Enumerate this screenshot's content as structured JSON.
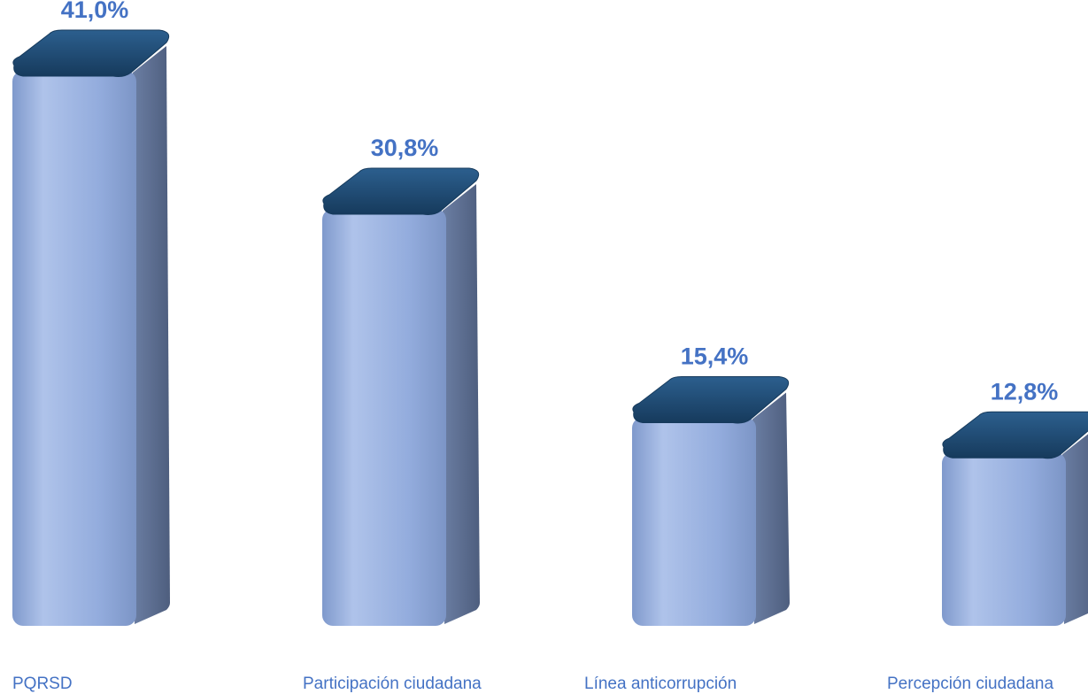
{
  "chart_data": {
    "type": "bar",
    "title": "",
    "xlabel": "",
    "ylabel": "",
    "categories": [
      "PQRSD",
      "Participación ciudadana",
      "Línea anticorrupción",
      "Percepción ciudadana"
    ],
    "values": [
      41.0,
      30.8,
      15.4,
      12.8
    ],
    "value_labels": [
      "41,0%",
      "30,8%",
      "15,4%",
      "12,8%"
    ],
    "unit": "%",
    "ylim": [
      0,
      41
    ],
    "grid": false,
    "legend": "none",
    "colors": {
      "front": "#8FA9DC",
      "front_light": "#AFC3EA",
      "side": "#5A6B8C",
      "top": "#1F4E79",
      "top_edge": "#163A5C",
      "label": "#4472C4"
    }
  }
}
